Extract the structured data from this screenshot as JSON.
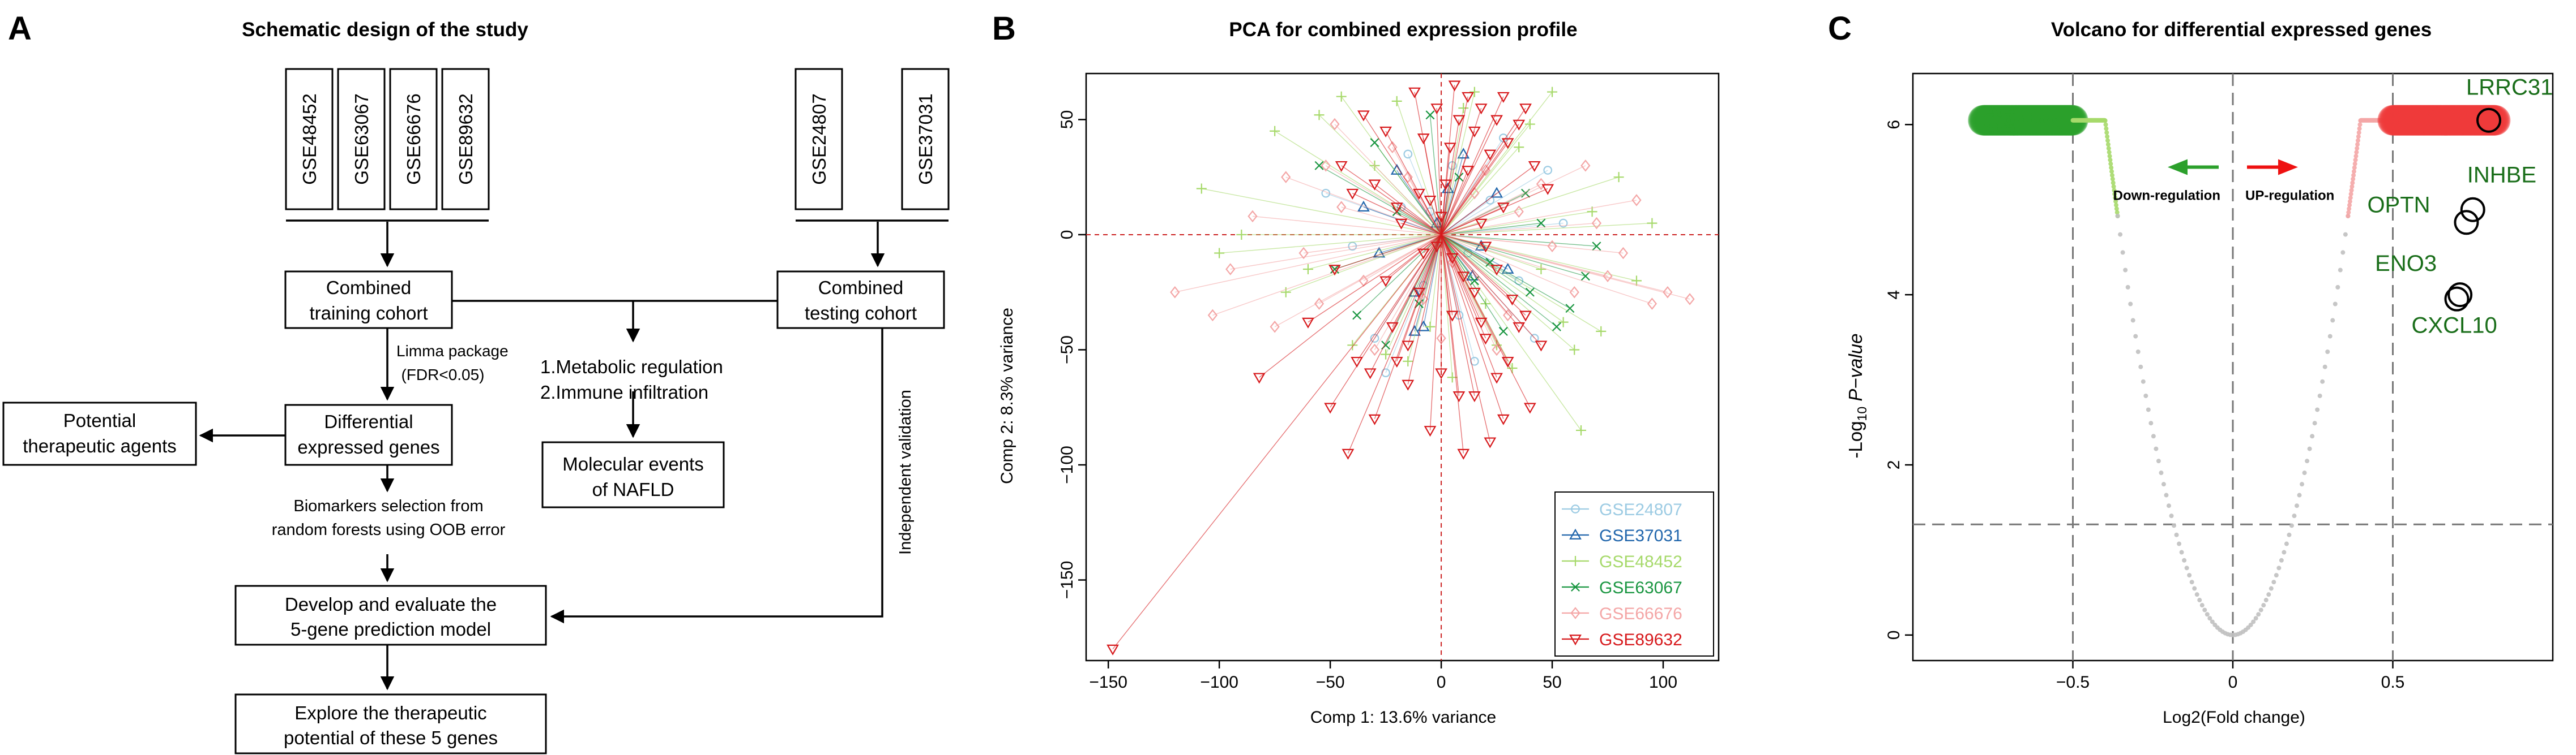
{
  "panel_a": {
    "letter": "A",
    "title": "Schematic design of the study",
    "training_datasets": [
      "GSE48452",
      "GSE63067",
      "GSE66676",
      "GSE89632"
    ],
    "testing_datasets": [
      "GSE24807",
      "GSE37031"
    ],
    "combined_training": [
      "Combined",
      "training cohort"
    ],
    "combined_testing": [
      "Combined",
      "testing cohort"
    ],
    "limma": [
      "Limma package",
      "(FDR<0.05)"
    ],
    "deg": [
      "Differential",
      "expressed genes"
    ],
    "potential_agents": [
      "Potential",
      "therapeutic agents"
    ],
    "regulation": [
      "1.Metabolic regulation",
      "2.Immune infiltration"
    ],
    "molecular_events": [
      "Molecular events",
      "of NAFLD"
    ],
    "biomarkers": [
      "Biomarkers selection from",
      "random forests using OOB error"
    ],
    "develop": [
      "Develop and evaluate the",
      "5-gene prediction model"
    ],
    "explore": [
      "Explore the therapeutic",
      "potential of these 5 genes"
    ],
    "independent_validation": "Independent validation"
  },
  "panel_b": {
    "letter": "B"
  },
  "panel_c": {
    "letter": "C"
  },
  "chart_data": [
    {
      "type": "scatter",
      "title": "PCA for combined expression profile",
      "xlabel": "Comp 1: 13.6% variance",
      "ylabel": "Comp 2: 8.3% variance",
      "xlim": [
        -160,
        125
      ],
      "ylim": [
        -185,
        70
      ],
      "xticks": [
        -150,
        -100,
        -50,
        0,
        50,
        100
      ],
      "yticks": [
        -150,
        -100,
        -50,
        0,
        50
      ],
      "reference_lines": {
        "x": 0,
        "y": 0,
        "style": "dashed",
        "color": "#cc2222"
      },
      "legend_position": "bottom-right",
      "series": [
        {
          "name": "GSE24807",
          "color": "#9ccbe3",
          "marker": "circle",
          "points": [
            [
              -52,
              18
            ],
            [
              -30,
              -45
            ],
            [
              -18,
              12
            ],
            [
              -8,
              -22
            ],
            [
              5,
              30
            ],
            [
              12,
              -8
            ],
            [
              22,
              15
            ],
            [
              35,
              -20
            ],
            [
              48,
              28
            ],
            [
              -40,
              -5
            ],
            [
              28,
              42
            ],
            [
              -15,
              35
            ],
            [
              8,
              -35
            ],
            [
              55,
              5
            ],
            [
              -25,
              -60
            ],
            [
              15,
              -55
            ],
            [
              42,
              -45
            ],
            [
              -5,
              10
            ]
          ]
        },
        {
          "name": "GSE37031",
          "color": "#2166ac",
          "marker": "triangle-up",
          "points": [
            [
              -35,
              12
            ],
            [
              -12,
              -25
            ],
            [
              3,
              20
            ],
            [
              18,
              -5
            ],
            [
              25,
              18
            ],
            [
              -28,
              -8
            ],
            [
              10,
              35
            ],
            [
              -20,
              28
            ],
            [
              30,
              -15
            ],
            [
              -8,
              -40
            ],
            [
              -2,
              5
            ],
            [
              14,
              -18
            ],
            [
              -12,
              -42
            ]
          ]
        },
        {
          "name": "GSE48452",
          "color": "#a6d96a",
          "marker": "plus",
          "points": [
            [
              -108,
              20
            ],
            [
              -75,
              45
            ],
            [
              -55,
              52
            ],
            [
              -40,
              -48
            ],
            [
              -20,
              58
            ],
            [
              -5,
              -40
            ],
            [
              10,
              55
            ],
            [
              20,
              -30
            ],
            [
              35,
              38
            ],
            [
              45,
              -15
            ],
            [
              55,
              -38
            ],
            [
              68,
              10
            ],
            [
              80,
              25
            ],
            [
              95,
              5
            ],
            [
              -60,
              -15
            ],
            [
              -30,
              30
            ],
            [
              25,
              -48
            ],
            [
              40,
              48
            ],
            [
              60,
              -50
            ],
            [
              -90,
              0
            ],
            [
              -15,
              -55
            ],
            [
              5,
              -62
            ],
            [
              72,
              -42
            ],
            [
              -45,
              60
            ],
            [
              15,
              62
            ],
            [
              -70,
              -25
            ],
            [
              50,
              62
            ],
            [
              88,
              -20
            ],
            [
              32,
              -58
            ],
            [
              -100,
              -8
            ],
            [
              -25,
              -52
            ],
            [
              63,
              -85
            ]
          ]
        },
        {
          "name": "GSE63067",
          "color": "#1a9641",
          "marker": "cross",
          "points": [
            [
              -48,
              -15
            ],
            [
              -30,
              40
            ],
            [
              -10,
              -30
            ],
            [
              8,
              25
            ],
            [
              22,
              -12
            ],
            [
              38,
              18
            ],
            [
              52,
              -40
            ],
            [
              65,
              -18
            ],
            [
              -20,
              10
            ],
            [
              28,
              -42
            ],
            [
              -5,
              52
            ],
            [
              45,
              5
            ],
            [
              58,
              -32
            ],
            [
              -38,
              -35
            ],
            [
              15,
              -20
            ],
            [
              -55,
              30
            ],
            [
              70,
              -5
            ],
            [
              -25,
              -48
            ],
            [
              40,
              -25
            ]
          ]
        },
        {
          "name": "GSE66676",
          "color": "#f4a6a6",
          "marker": "diamond",
          "points": [
            [
              -120,
              -25
            ],
            [
              -103,
              -35
            ],
            [
              -85,
              8
            ],
            [
              -70,
              25
            ],
            [
              -55,
              -30
            ],
            [
              -45,
              12
            ],
            [
              -30,
              -50
            ],
            [
              -15,
              25
            ],
            [
              0,
              -45
            ],
            [
              15,
              18
            ],
            [
              30,
              -35
            ],
            [
              45,
              22
            ],
            [
              60,
              -25
            ],
            [
              70,
              5
            ],
            [
              82,
              -8
            ],
            [
              95,
              -30
            ],
            [
              112,
              -28
            ],
            [
              -62,
              -8
            ],
            [
              -35,
              -20
            ],
            [
              -22,
              38
            ],
            [
              5,
              -12
            ],
            [
              20,
              28
            ],
            [
              35,
              10
            ],
            [
              50,
              -5
            ],
            [
              75,
              -18
            ],
            [
              88,
              15
            ],
            [
              -48,
              48
            ],
            [
              25,
              -50
            ],
            [
              -8,
              -28
            ],
            [
              -95,
              -15
            ],
            [
              -75,
              -40
            ],
            [
              -52,
              30
            ],
            [
              102,
              -25
            ],
            [
              65,
              30
            ]
          ]
        },
        {
          "name": "GSE89632",
          "color": "#d7191c",
          "marker": "triangle-down",
          "points": [
            [
              -148,
              -180
            ],
            [
              -82,
              -62
            ],
            [
              -60,
              -38
            ],
            [
              -48,
              -15
            ],
            [
              -38,
              -55
            ],
            [
              -30,
              -80
            ],
            [
              -22,
              -40
            ],
            [
              -15,
              -65
            ],
            [
              -10,
              -25
            ],
            [
              -5,
              -85
            ],
            [
              0,
              -60
            ],
            [
              5,
              -35
            ],
            [
              10,
              -95
            ],
            [
              15,
              -70
            ],
            [
              20,
              -45
            ],
            [
              25,
              -62
            ],
            [
              28,
              -80
            ],
            [
              35,
              -40
            ],
            [
              40,
              -75
            ],
            [
              -35,
              52
            ],
            [
              -25,
              45
            ],
            [
              -20,
              -55
            ],
            [
              -12,
              62
            ],
            [
              -8,
              42
            ],
            [
              -2,
              55
            ],
            [
              4,
              38
            ],
            [
              8,
              50
            ],
            [
              12,
              60
            ],
            [
              15,
              45
            ],
            [
              18,
              55
            ],
            [
              22,
              35
            ],
            [
              25,
              50
            ],
            [
              28,
              60
            ],
            [
              30,
              40
            ],
            [
              35,
              48
            ],
            [
              38,
              55
            ],
            [
              42,
              30
            ],
            [
              48,
              20
            ],
            [
              -45,
              30
            ],
            [
              -40,
              18
            ],
            [
              -30,
              22
            ],
            [
              -20,
              12
            ],
            [
              -10,
              18
            ],
            [
              0,
              8
            ],
            [
              5,
              -10
            ],
            [
              10,
              -18
            ],
            [
              15,
              -25
            ],
            [
              20,
              -5
            ],
            [
              25,
              -15
            ],
            [
              32,
              -28
            ],
            [
              38,
              -35
            ],
            [
              45,
              -48
            ],
            [
              -15,
              -48
            ],
            [
              -25,
              -20
            ],
            [
              -18,
              5
            ],
            [
              -5,
              15
            ],
            [
              2,
              22
            ],
            [
              12,
              28
            ],
            [
              18,
              5
            ],
            [
              28,
              12
            ],
            [
              -50,
              -75
            ],
            [
              -42,
              -95
            ],
            [
              -32,
              -60
            ],
            [
              8,
              -70
            ],
            [
              22,
              -90
            ],
            [
              30,
              -55
            ],
            [
              -2,
              -5
            ],
            [
              18,
              -38
            ],
            [
              -8,
              -8
            ],
            [
              6,
              65
            ]
          ]
        }
      ]
    },
    {
      "type": "scatter",
      "title": "Volcano for differential expressed genes",
      "xlabel": "Log2(Fold change)",
      "ylabel": "-Log10 P-value",
      "xlim": [
        -1.0,
        1.0
      ],
      "ylim": [
        -0.3,
        6.6
      ],
      "xticks": [
        -0.5,
        0,
        0.5
      ],
      "xtick_labels": [
        "-0.5",
        "0",
        "0.5"
      ],
      "yticks": [
        0,
        2,
        4,
        6
      ],
      "reference_lines": {
        "x": [
          -0.5,
          0,
          0.5
        ],
        "y": 1.3,
        "style": "dashed",
        "color": "#777777"
      },
      "legend": {
        "down": "Down-regulation",
        "up": "UP-regulation"
      },
      "series": [
        {
          "name": "Down-regulated significant",
          "color": "#2ca02c",
          "x_range": [
            -0.78,
            -0.5
          ]
        },
        {
          "name": "Down-regulated",
          "color": "#a6d96a",
          "x_range": [
            -0.5,
            -0.36
          ]
        },
        {
          "name": "Not significant",
          "color": "#c0c0c0",
          "x_range": [
            -0.36,
            0.36
          ]
        },
        {
          "name": "Up-regulated",
          "color": "#f4a6a6",
          "x_range": [
            0.36,
            0.5
          ]
        },
        {
          "name": "Up-regulated significant",
          "color": "#ef3b3b",
          "x_range": [
            0.5,
            0.82
          ]
        }
      ],
      "highlighted": [
        {
          "label": "LRRC31",
          "x": 0.8,
          "y": 6.05
        },
        {
          "label": "INHBE",
          "x": 0.75,
          "y": 5.0
        },
        {
          "label": "OPTN",
          "x": 0.73,
          "y": 4.85
        },
        {
          "label": "ENO3",
          "x": 0.71,
          "y": 4.0
        },
        {
          "label": "CXCL10",
          "x": 0.7,
          "y": 3.95
        }
      ]
    }
  ]
}
